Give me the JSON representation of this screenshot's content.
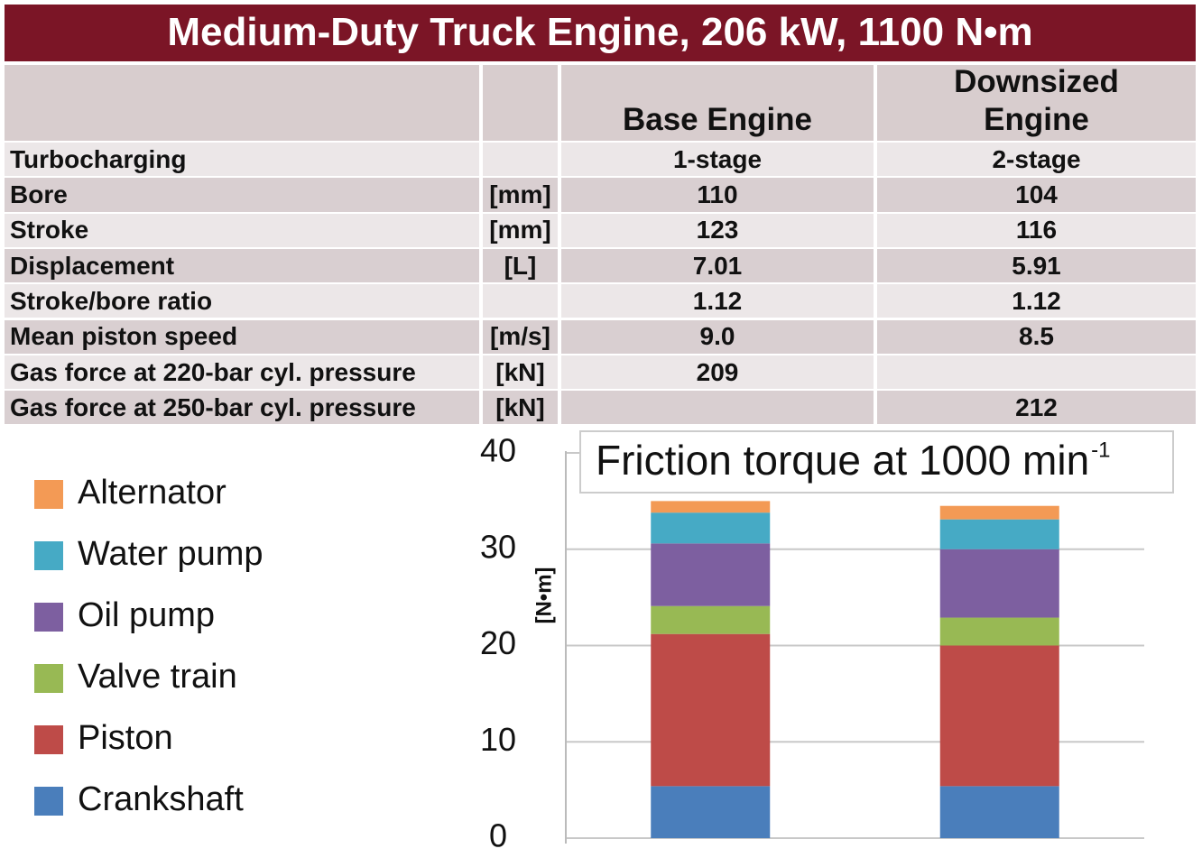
{
  "header": {
    "title": "Medium-Duty Truck Engine, 206 kW, 1100 N•m"
  },
  "table": {
    "columns": [
      "Base Engine",
      "Downsized Engine"
    ],
    "rows": [
      [
        "Turbocharging",
        null,
        "1-stage",
        "2-stage"
      ],
      [
        "Bore",
        "[mm]",
        "110",
        "104"
      ],
      [
        "Stroke",
        "[mm]",
        "123",
        "116"
      ],
      [
        "Displacement",
        "[L]",
        "7.01",
        "5.91"
      ],
      [
        "Stroke/bore ratio",
        null,
        "1.12",
        "1.12"
      ],
      [
        "Mean piston speed",
        "[m/s]",
        "9.0",
        "8.5"
      ],
      [
        "Gas force at 220-bar cyl. pressure",
        "[kN]",
        "209",
        null
      ],
      [
        "Gas force at 250-bar cyl. pressure",
        "[kN]",
        null,
        "212"
      ]
    ]
  },
  "chart_data": {
    "type": "stacked_bar",
    "title": "Friction torque at 1000 min",
    "title_superscript": "-1",
    "y_label": "[N•m]",
    "categories": [
      null,
      null
    ],
    "series": [
      {
        "name": "Crankshaft",
        "color": "#4a7ebb",
        "values": [
          5.4,
          5.4
        ]
      },
      {
        "name": "Piston",
        "color": "#be4b48",
        "values": [
          15.8,
          14.6
        ]
      },
      {
        "name": "Valve train",
        "color": "#98b954",
        "values": [
          2.9,
          2.9
        ]
      },
      {
        "name": "Oil pump",
        "color": "#7d5fa0",
        "values": [
          6.5,
          7.1
        ]
      },
      {
        "name": "Water pump",
        "color": "#46aac5",
        "values": [
          3.2,
          3.1
        ]
      },
      {
        "name": "Alternator",
        "color": "#f39a55",
        "values": [
          1.2,
          1.4
        ]
      }
    ],
    "ylim": [
      0,
      40
    ],
    "yticks": [
      0,
      10,
      20,
      30,
      40
    ],
    "grid": true
  }
}
